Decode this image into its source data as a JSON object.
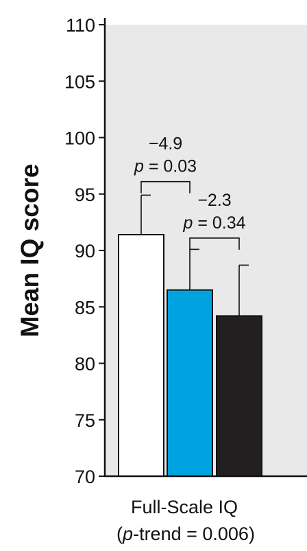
{
  "chart_data": {
    "type": "bar",
    "title": "",
    "ylabel": "Mean IQ score",
    "xlabel": "",
    "categories": [
      "Full-Scale IQ"
    ],
    "category_sublabel": {
      "prefix": "(",
      "italic": "p",
      "suffix": "-trend = 0.006)"
    },
    "ylim": [
      70,
      110
    ],
    "yticks": [
      70,
      75,
      80,
      85,
      90,
      95,
      100,
      105,
      110
    ],
    "grid": false,
    "legend": "none",
    "plot_background": "#e9e9e9",
    "series": [
      {
        "values": [
          91.4
        ],
        "error": [
          3.5
        ],
        "color": "#ffffff"
      },
      {
        "values": [
          86.5
        ],
        "error": [
          3.6
        ],
        "color": "#00a3e0"
      },
      {
        "values": [
          84.2
        ],
        "error": [
          4.5
        ],
        "color": "#231f20"
      }
    ],
    "comparisons": [
      {
        "from": 0,
        "to": 1,
        "bracket_y": 96.1,
        "diff": "−4.9",
        "p_italic": "p",
        "p_text": " = 0.03"
      },
      {
        "from": 1,
        "to": 2,
        "bracket_y": 91.1,
        "diff": "−2.3",
        "p_italic": "p",
        "p_text": " = 0.34"
      }
    ]
  }
}
